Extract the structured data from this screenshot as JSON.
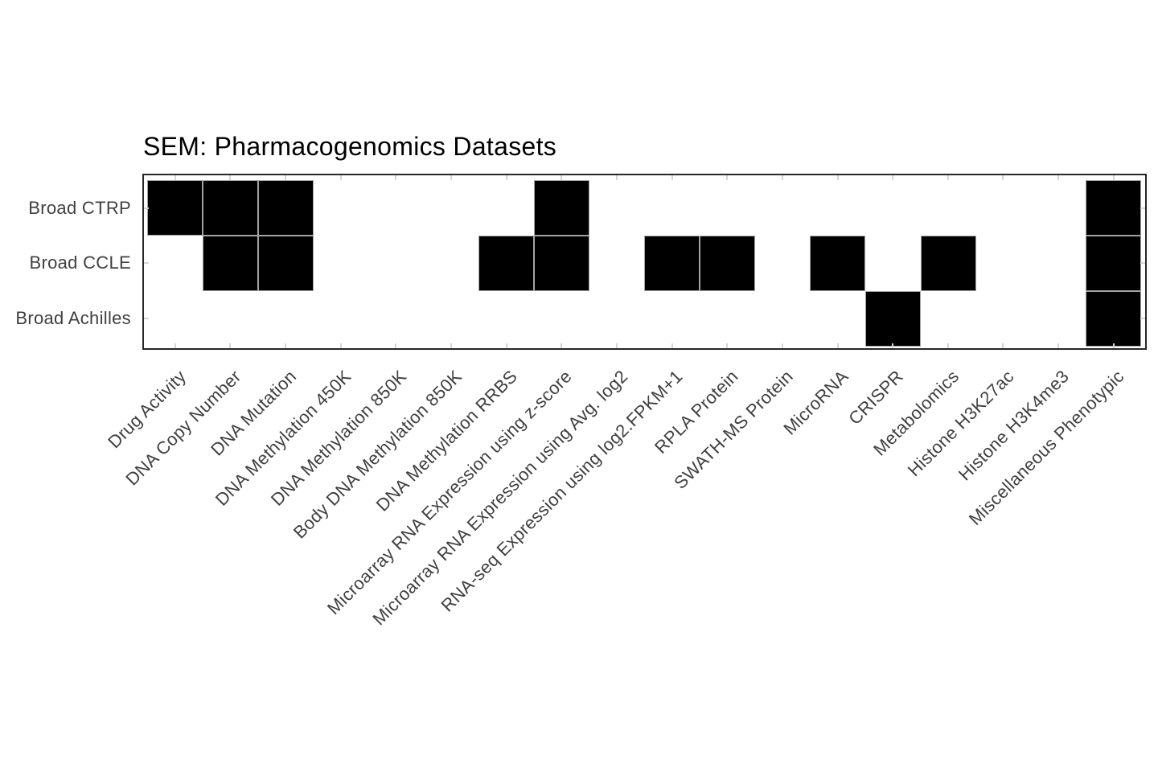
{
  "title": "SEM: Pharmacogenomics Datasets",
  "colors": {
    "tile": "#000000",
    "tile_border": "#a3a3a3",
    "panel_border": "#262626",
    "tick": "#d6d6d6",
    "axis_text": "#404040",
    "title_text": "#000000",
    "background": "#ffffff"
  },
  "chart_data": {
    "type": "heatmap",
    "title": "SEM: Pharmacogenomics Datasets",
    "rows": [
      "Broad CTRP",
      "Broad CCLE",
      "Broad Achilles"
    ],
    "columns": [
      "Drug Activity",
      "DNA Copy Number",
      "DNA Mutation",
      "DNA Methylation 450K",
      "DNA Methylation 850K",
      "Body DNA Methylation 850K",
      "DNA Methylation RRBS",
      "Microarray RNA Expression using z-score",
      "Microarray RNA Expression using Avg. log2",
      "RNA-seq Expression using log2.FPKM+1",
      "RPLA Protein",
      "SWATH-MS Protein",
      "MicroRNA",
      "CRISPR",
      "Metabolomics",
      "Histone H3K27ac",
      "Histone H3K4me3",
      "Miscellaneous Phenotypic"
    ],
    "matrix": [
      [
        1,
        1,
        1,
        0,
        0,
        0,
        0,
        1,
        0,
        0,
        0,
        0,
        0,
        0,
        0,
        0,
        0,
        1
      ],
      [
        0,
        1,
        1,
        0,
        0,
        0,
        1,
        1,
        0,
        1,
        1,
        0,
        1,
        0,
        1,
        0,
        0,
        1
      ],
      [
        0,
        0,
        0,
        0,
        0,
        0,
        0,
        0,
        0,
        0,
        0,
        0,
        0,
        1,
        0,
        0,
        0,
        1
      ]
    ],
    "value_encoding": "1 = black tile (dataset present), 0 = white (absent)",
    "legend": "none",
    "grid": "off",
    "x_tick_angle": 45
  }
}
